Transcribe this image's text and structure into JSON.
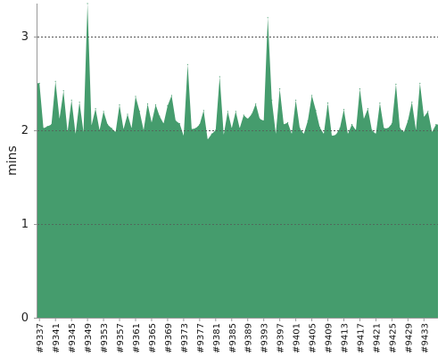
{
  "chart_data": {
    "type": "area",
    "ylabel": "mins",
    "xlabel": "",
    "ylim": [
      0,
      3.35
    ],
    "yticks": [
      0,
      1,
      2,
      3
    ],
    "grid": true,
    "colors": {
      "area": "#459c6d",
      "grid": "#555555",
      "axis": "#999999"
    },
    "x": [
      "#9337",
      "#9338",
      "#9339",
      "#9340",
      "#9341",
      "#9342",
      "#9343",
      "#9344",
      "#9345",
      "#9346",
      "#9347",
      "#9348",
      "#9349",
      "#9350",
      "#9351",
      "#9352",
      "#9353",
      "#9354",
      "#9355",
      "#9356",
      "#9357",
      "#9358",
      "#9359",
      "#9360",
      "#9361",
      "#9362",
      "#9363",
      "#9364",
      "#9365",
      "#9366",
      "#9367",
      "#9368",
      "#9369",
      "#9370",
      "#9371",
      "#9372",
      "#9373",
      "#9374",
      "#9375",
      "#9376",
      "#9377",
      "#9378",
      "#9379",
      "#9380",
      "#9381",
      "#9382",
      "#9383",
      "#9384",
      "#9385",
      "#9386",
      "#9387",
      "#9388",
      "#9389",
      "#9390",
      "#9391",
      "#9392",
      "#9393",
      "#9394",
      "#9395",
      "#9396",
      "#9397",
      "#9398",
      "#9399",
      "#9400",
      "#9401",
      "#9402",
      "#9403",
      "#9404",
      "#9405",
      "#9406",
      "#9407",
      "#9408",
      "#9409",
      "#9410",
      "#9411",
      "#9412",
      "#9413",
      "#9414",
      "#9415",
      "#9416",
      "#9417",
      "#9418",
      "#9419",
      "#9420",
      "#9421",
      "#9422",
      "#9423",
      "#9424",
      "#9425",
      "#9426",
      "#9427",
      "#9428",
      "#9429",
      "#9430",
      "#9431",
      "#9432",
      "#9433",
      "#9434",
      "#9435",
      "#9436"
    ],
    "x_tick_labels": [
      "#9337",
      "#9341",
      "#9345",
      "#9349",
      "#9353",
      "#9357",
      "#9361",
      "#9365",
      "#9369",
      "#9373",
      "#9377",
      "#9381",
      "#9385",
      "#9389",
      "#9393",
      "#9397",
      "#9401",
      "#9405",
      "#9409",
      "#9413",
      "#9417",
      "#9421",
      "#9425",
      "#9429",
      "#9433"
    ],
    "values": [
      2.5,
      2.02,
      2.04,
      2.06,
      2.52,
      2.12,
      2.42,
      1.98,
      2.32,
      1.96,
      2.3,
      1.98,
      3.35,
      2.05,
      2.23,
      2.0,
      2.2,
      2.06,
      2.02,
      1.98,
      2.27,
      2.01,
      2.17,
      2.02,
      2.36,
      2.2,
      2.0,
      2.28,
      2.08,
      2.27,
      2.15,
      2.07,
      2.26,
      2.37,
      2.1,
      2.07,
      1.94,
      2.7,
      2.01,
      2.02,
      2.06,
      2.21,
      1.9,
      1.96,
      2.0,
      2.57,
      1.95,
      2.2,
      2.02,
      2.2,
      2.02,
      2.16,
      2.12,
      2.17,
      2.28,
      2.12,
      2.1,
      3.2,
      2.32,
      1.96,
      2.44,
      2.06,
      2.08,
      1.96,
      2.32,
      2.02,
      1.96,
      2.1,
      2.37,
      2.21,
      2.03,
      1.96,
      2.29,
      1.94,
      1.95,
      2.02,
      2.22,
      1.96,
      2.06,
      2.0,
      2.44,
      2.12,
      2.23,
      2.0,
      1.96,
      2.29,
      2.02,
      2.02,
      2.07,
      2.49,
      2.02,
      1.98,
      2.1,
      2.3,
      2.0,
      2.5,
      2.14,
      2.2,
      1.98,
      2.06
    ]
  }
}
